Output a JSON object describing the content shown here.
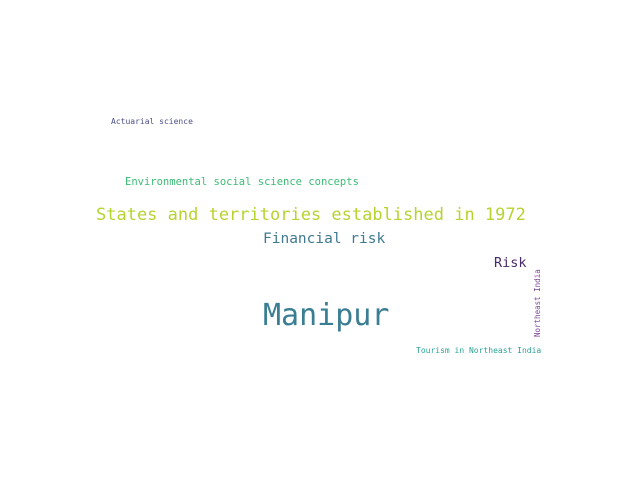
{
  "words": [
    {
      "text": "Actuarial science",
      "color": "#4a4f8a"
    },
    {
      "text": "Environmental social science concepts",
      "color": "#3cbb75"
    },
    {
      "text": "States and territories established in 1972",
      "color": "#b5d430"
    },
    {
      "text": "Financial risk",
      "color": "#3f7a8f"
    },
    {
      "text": "Risk",
      "color": "#482a6b"
    },
    {
      "text": "Manipur",
      "color": "#3a7e93"
    },
    {
      "text": "Tourism in Northeast India",
      "color": "#2aa394"
    },
    {
      "text": "Northeast India",
      "color": "#7a3f93"
    }
  ]
}
